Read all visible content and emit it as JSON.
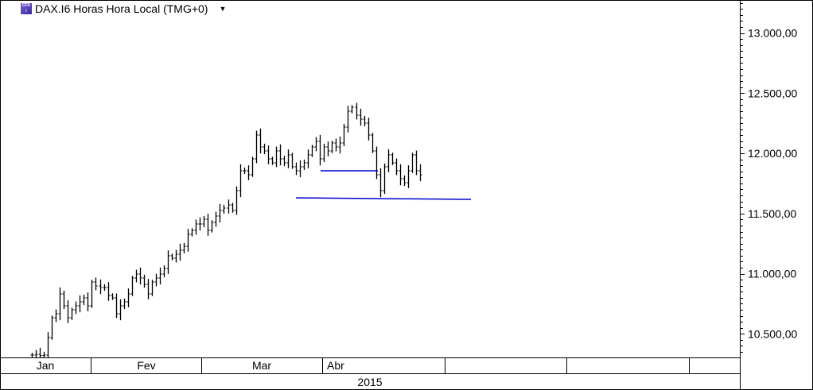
{
  "header": {
    "symbol_title": "DAX.I6 Horas Hora Local (TMG+0)",
    "icon": "cfd-instrument-icon",
    "dropdown_icon": "caret-down-icon"
  },
  "chart_data": {
    "type": "ohlc",
    "interval": "6 Horas",
    "ylim": [
      10304,
      13274
    ],
    "y_ticks": [
      "13.000,00",
      "12.500,00",
      "12.000,00",
      "11.500,00",
      "11.000,00",
      "10.500,00"
    ],
    "y_tick_values": [
      13000,
      12500,
      12000,
      11500,
      11000,
      10500
    ],
    "y_minor_step": 50,
    "x_month_labels": [
      "Jan",
      "Fev",
      "Mar",
      "Abr",
      "",
      "",
      ""
    ],
    "x_year_label": "2015",
    "bar_color": "#000000",
    "closes": [
      10324,
      10330,
      10320,
      10324,
      10469,
      10634,
      10667,
      10832,
      10733,
      10634,
      10700,
      10733,
      10766,
      10799,
      10733,
      10931,
      10898,
      10885,
      10885,
      10819,
      10799,
      10667,
      10733,
      10766,
      10832,
      10964,
      10997,
      10964,
      10911,
      10832,
      10931,
      10964,
      10997,
      11043,
      11149,
      11129,
      11162,
      11195,
      11228,
      11327,
      11360,
      11413,
      11413,
      11452,
      11360,
      11426,
      11479,
      11525,
      11545,
      11571,
      11525,
      11690,
      11855,
      11855,
      11822,
      11954,
      12152,
      12053,
      12020,
      11954,
      11921,
      12020,
      11954,
      11921,
      11987,
      11888,
      11855,
      11888,
      11921,
      11987,
      12053,
      12099,
      11954,
      12053,
      12020,
      12086,
      12053,
      12086,
      12218,
      12350,
      12383,
      12317,
      12284,
      12251,
      12152,
      12020,
      11822,
      11690,
      11888,
      11987,
      11921,
      11855,
      11789,
      11756,
      11855,
      11987,
      11855,
      11822
    ],
    "trendlines": [
      {
        "color": "#0000cc",
        "from_value": 11855,
        "to_value": 11855
      },
      {
        "color": "#0000cc",
        "from_value": 11630,
        "to_value": 11617
      }
    ],
    "grid": false
  }
}
